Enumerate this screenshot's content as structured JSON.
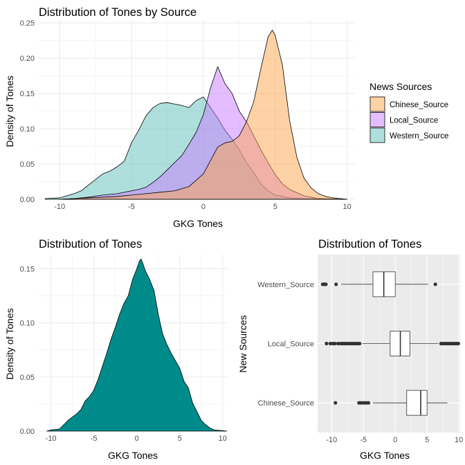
{
  "colors": {
    "Chinese_Source": "#FFA64D",
    "Local_Source": "#C77CFF",
    "Western_Source": "#5FBFB9",
    "single_fill": "#008B8B",
    "panel_grey": "#EBEBEB"
  },
  "chart_data": [
    {
      "type": "area",
      "subtype": "density",
      "title": "Distribution of Tones by Source",
      "xlabel": "GKG Tones",
      "ylabel": "Density of Tones",
      "xlim": [
        -11.5,
        10.5
      ],
      "ylim": [
        0,
        0.255
      ],
      "x_ticks": [
        "-10",
        "-5",
        "0",
        "5",
        "10"
      ],
      "y_ticks": [
        "0.00",
        "0.05",
        "0.10",
        "0.15",
        "0.20",
        "0.25"
      ],
      "grid": true,
      "legend": {
        "title": "News Sources",
        "position": "right",
        "entries": [
          "Chinese_Source",
          "Local_Source",
          "Western_Source"
        ]
      },
      "series": [
        {
          "name": "Western_Source",
          "fill_opacity": 0.5,
          "x": [
            -11,
            -10,
            -9,
            -8.5,
            -8,
            -7.5,
            -7,
            -6.5,
            -6,
            -5.5,
            -5,
            -4.5,
            -4,
            -3.5,
            -3,
            -2.5,
            -2,
            -1.5,
            -1,
            -0.5,
            0,
            0.5,
            1,
            1.5,
            2,
            2.5,
            3,
            3.5,
            4,
            4.5,
            5,
            5.5,
            6,
            7,
            8,
            9,
            10
          ],
          "y": [
            0.001,
            0.002,
            0.008,
            0.012,
            0.02,
            0.028,
            0.036,
            0.04,
            0.046,
            0.054,
            0.08,
            0.098,
            0.118,
            0.13,
            0.136,
            0.137,
            0.135,
            0.133,
            0.13,
            0.14,
            0.145,
            0.13,
            0.115,
            0.098,
            0.085,
            0.07,
            0.052,
            0.038,
            0.022,
            0.012,
            0.006,
            0.004,
            0.002,
            0.001,
            0.001,
            0.0005,
            0
          ]
        },
        {
          "name": "Local_Source",
          "fill_opacity": 0.5,
          "x": [
            -10,
            -9,
            -8,
            -7,
            -6,
            -5,
            -4.5,
            -4,
            -3.5,
            -3,
            -2.5,
            -2,
            -1.5,
            -1,
            -0.5,
            0,
            0.5,
            1,
            1.5,
            2,
            2.5,
            3,
            3.5,
            4,
            4.5,
            5,
            5.5,
            6,
            7,
            8,
            9,
            10
          ],
          "y": [
            0,
            0.001,
            0.003,
            0.006,
            0.008,
            0.012,
            0.014,
            0.017,
            0.024,
            0.032,
            0.042,
            0.052,
            0.062,
            0.078,
            0.095,
            0.12,
            0.158,
            0.188,
            0.164,
            0.15,
            0.125,
            0.11,
            0.09,
            0.07,
            0.052,
            0.035,
            0.022,
            0.014,
            0.005,
            0.001,
            0.0005,
            0
          ]
        },
        {
          "name": "Chinese_Source",
          "fill_opacity": 0.5,
          "x": [
            -10,
            -9,
            -8,
            -7,
            -6,
            -5,
            -4,
            -3,
            -2,
            -1,
            0,
            0.5,
            1,
            1.5,
            2,
            2.5,
            3,
            3.5,
            4,
            4.5,
            4.8,
            5,
            5.5,
            6,
            6.5,
            7,
            7.5,
            8,
            8.5,
            9,
            10
          ],
          "y": [
            0,
            0.001,
            0.002,
            0.003,
            0.004,
            0.006,
            0.008,
            0.01,
            0.012,
            0.018,
            0.036,
            0.055,
            0.074,
            0.08,
            0.082,
            0.09,
            0.11,
            0.138,
            0.185,
            0.23,
            0.24,
            0.232,
            0.19,
            0.112,
            0.06,
            0.03,
            0.016,
            0.008,
            0.004,
            0.002,
            0
          ]
        }
      ]
    },
    {
      "type": "area",
      "subtype": "density",
      "title": "Distribution of Tones",
      "xlabel": "GKG Tones",
      "ylabel": "Density of Tones",
      "xlim": [
        -11.5,
        10.5
      ],
      "ylim": [
        0,
        0.163
      ],
      "x_ticks": [
        "-10",
        "-5",
        "0",
        "5",
        "10"
      ],
      "y_ticks": [
        "0.00",
        "0.05",
        "0.10",
        "0.15"
      ],
      "grid": true,
      "series": [
        {
          "x": [
            -10.5,
            -10,
            -9,
            -8.5,
            -8,
            -7.5,
            -7,
            -6.5,
            -6,
            -5.5,
            -5,
            -4.5,
            -4,
            -3.5,
            -3,
            -2.5,
            -2,
            -1.5,
            -1,
            -0.5,
            0,
            0.3,
            0.5,
            0.7,
            1,
            1.5,
            2,
            2.5,
            3,
            3.5,
            4,
            4.5,
            5,
            5.5,
            6,
            6.5,
            7,
            7.5,
            8,
            8.5,
            9,
            10,
            10.5
          ],
          "y": [
            0,
            0.001,
            0.002,
            0.006,
            0.01,
            0.013,
            0.016,
            0.02,
            0.028,
            0.032,
            0.038,
            0.048,
            0.06,
            0.072,
            0.085,
            0.096,
            0.108,
            0.118,
            0.125,
            0.14,
            0.15,
            0.157,
            0.159,
            0.155,
            0.148,
            0.14,
            0.13,
            0.108,
            0.09,
            0.08,
            0.072,
            0.065,
            0.058,
            0.046,
            0.04,
            0.026,
            0.018,
            0.01,
            0.006,
            0.003,
            0.001,
            0.0005,
            0
          ]
        }
      ]
    },
    {
      "type": "boxplot",
      "title": "Distribution of Tones",
      "xlabel": "GKG Tones",
      "ylabel": "New Sources",
      "xlim": [
        -12.2,
        10.2
      ],
      "x_ticks": [
        "-10",
        "-5",
        "0",
        "5",
        "10"
      ],
      "grid": true,
      "categories": [
        "Western_Source",
        "Local_Source",
        "Chinese_Source"
      ],
      "boxes": [
        {
          "name": "Western_Source",
          "whisker_low": -8.5,
          "q1": -3.5,
          "median": -1.8,
          "q3": 0,
          "whisker_high": 5.2,
          "outliers": [
            -11.4,
            -11.2,
            -11.0,
            -10.9,
            -9.3,
            6.3
          ]
        },
        {
          "name": "Local_Source",
          "whisker_low": -5.2,
          "q1": -0.8,
          "median": 0.8,
          "q3": 2.3,
          "whisker_high": 6.8,
          "outliers": [
            -10.8,
            -10.2,
            -9.8,
            -9.5,
            -9.0,
            -8.6,
            -8.3,
            -8.0,
            -7.7,
            -7.4,
            -7.1,
            -6.8,
            -6.5,
            -6.2,
            -5.9,
            -5.6,
            7.2,
            7.5,
            7.8,
            8.1,
            8.4,
            8.7,
            9.0,
            9.3,
            9.6,
            9.9
          ]
        },
        {
          "name": "Chinese_Source",
          "whisker_low": -3.5,
          "q1": 1.8,
          "median": 4.0,
          "q3": 5.0,
          "whisker_high": 8.2,
          "outliers": [
            -9.4,
            -5.7,
            -5.4,
            -5.1,
            -4.8,
            -4.5,
            -4.2
          ]
        }
      ]
    }
  ]
}
